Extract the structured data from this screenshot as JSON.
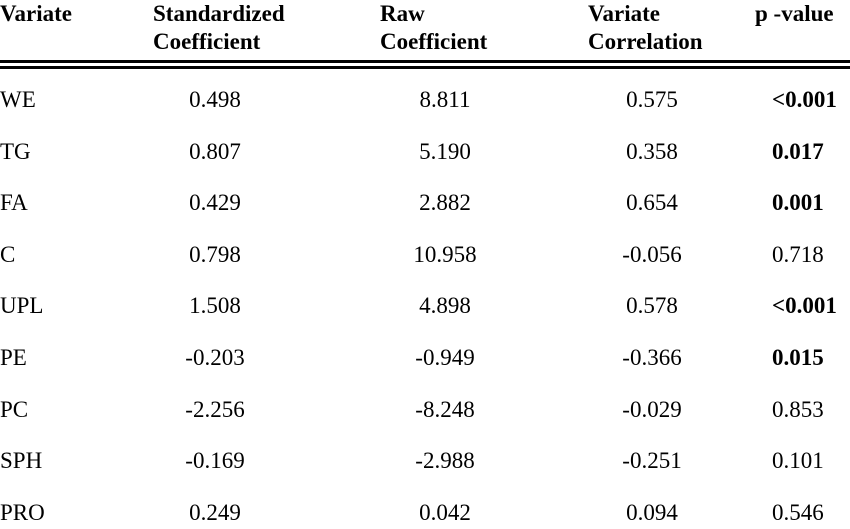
{
  "chart_data": {
    "type": "table",
    "columns": [
      [
        "Variate"
      ],
      [
        "Standardized",
        "Coefficient"
      ],
      [
        "Raw",
        "Coefficient"
      ],
      [
        "Variate",
        "Correlation"
      ],
      [
        "p -value"
      ]
    ],
    "rows": [
      {
        "variate": "WE",
        "standardized": "0.498",
        "raw": "8.811",
        "correlation": "0.575",
        "p": "<0.001",
        "significant": true
      },
      {
        "variate": "TG",
        "standardized": "0.807",
        "raw": "5.190",
        "correlation": "0.358",
        "p": "0.017",
        "significant": true
      },
      {
        "variate": "FA",
        "standardized": "0.429",
        "raw": "2.882",
        "correlation": "0.654",
        "p": "0.001",
        "significant": true
      },
      {
        "variate": "C",
        "standardized": "0.798",
        "raw": "10.958",
        "correlation": "-0.056",
        "p": "0.718",
        "significant": false
      },
      {
        "variate": "UPL",
        "standardized": "1.508",
        "raw": "4.898",
        "correlation": "0.578",
        "p": "<0.001",
        "significant": true
      },
      {
        "variate": "PE",
        "standardized": "-0.203",
        "raw": "-0.949",
        "correlation": "-0.366",
        "p": "0.015",
        "significant": true
      },
      {
        "variate": "PC",
        "standardized": "-2.256",
        "raw": "-8.248",
        "correlation": "-0.029",
        "p": "0.853",
        "significant": false
      },
      {
        "variate": "SPH",
        "standardized": "-0.169",
        "raw": "-2.988",
        "correlation": "-0.251",
        "p": "0.101",
        "significant": false
      },
      {
        "variate": "PRO",
        "standardized": "0.249",
        "raw": "0.042",
        "correlation": "0.094",
        "p": "0.546",
        "significant": false
      }
    ]
  }
}
